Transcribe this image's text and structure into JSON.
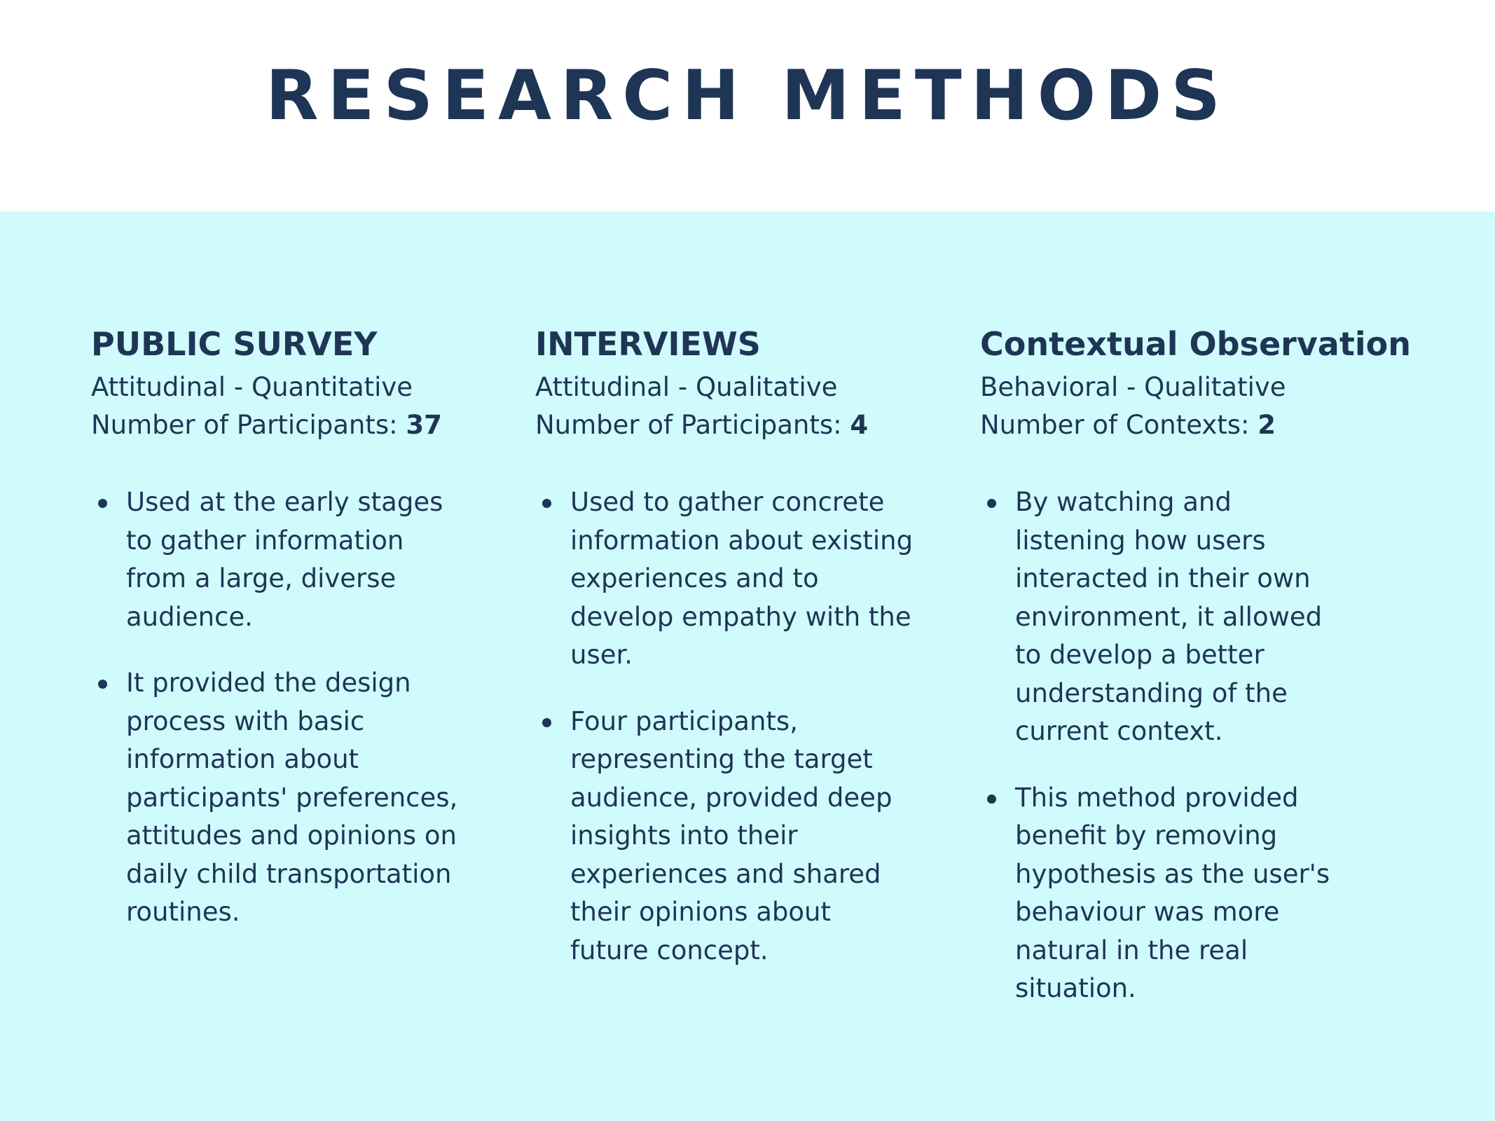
{
  "title": "RESEARCH METHODS",
  "colors": {
    "text": "#1f3555",
    "content_background": "#d0fbfd",
    "header_background": "#ffffff"
  },
  "columns": [
    {
      "heading": "PUBLIC SURVEY",
      "subtitle": "Attitudinal - Quantitative",
      "count_label": "Number of Participants: ",
      "count_value": "37",
      "bullets": [
        "Used at the early stages to gather information from a large, diverse audience.",
        "It provided the design process with basic information about participants' preferences, attitudes and opinions on daily child transportation routines."
      ]
    },
    {
      "heading": "INTERVIEWS",
      "subtitle": "Attitudinal - Qualitative",
      "count_label": "Number of Participants: ",
      "count_value": "4",
      "bullets": [
        "Used to gather concrete information about existing experiences and to develop empathy with the user.",
        "Four participants, representing the target audience, provided deep insights into their experiences and shared their opinions about future concept."
      ]
    },
    {
      "heading": "Contextual Observation",
      "subtitle": "Behavioral - Qualitative",
      "count_label": "Number of Contexts: ",
      "count_value": "2",
      "bullets": [
        "By watching and listening how users interacted in their own environment, it allowed to develop a better understanding of the current context.",
        "This method provided benefit by removing hypothesis as the user's behaviour was more natural in the real situation."
      ]
    }
  ]
}
